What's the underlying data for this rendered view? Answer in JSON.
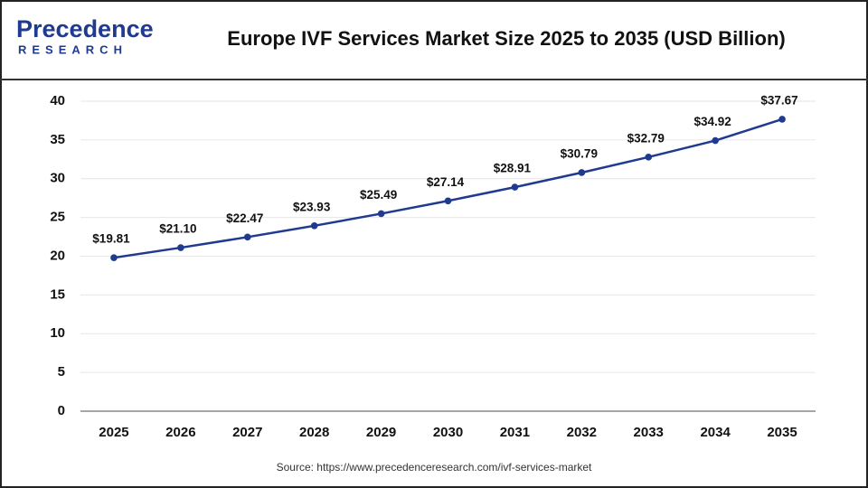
{
  "logo": {
    "name": "Precedence",
    "tagline": "RESEARCH"
  },
  "chart_data": {
    "type": "line",
    "title": "Europe IVF Services Market Size 2025 to 2035 (USD Billion)",
    "categories": [
      "2025",
      "2026",
      "2027",
      "2028",
      "2029",
      "2030",
      "2031",
      "2032",
      "2033",
      "2034",
      "2035"
    ],
    "values": [
      19.81,
      21.1,
      22.47,
      23.93,
      25.49,
      27.14,
      28.91,
      30.79,
      32.79,
      34.92,
      37.67
    ],
    "value_labels": [
      "$19.81",
      "$21.10",
      "$22.47",
      "$23.93",
      "$25.49",
      "$27.14",
      "$28.91",
      "$30.79",
      "$32.79",
      "$34.92",
      "$37.67"
    ],
    "color": "#1f3a8f",
    "ylim": [
      0,
      40
    ],
    "yticks": [
      0,
      5,
      10,
      15,
      20,
      25,
      30,
      35,
      40
    ],
    "grid": true,
    "source": "Source: https://www.precedenceresearch.com/ivf-services-market"
  }
}
